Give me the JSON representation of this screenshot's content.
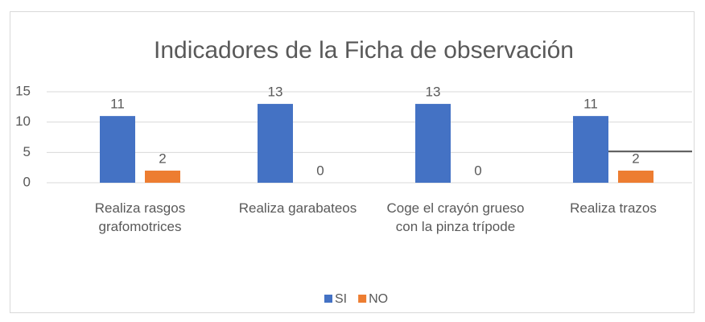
{
  "chart_data": {
    "type": "bar",
    "title": "Indicadores de la Ficha de observación",
    "categories": [
      "Realiza rasgos grafomotrices",
      "Realiza garabateos",
      "Coge el crayón grueso con la pinza trípode",
      "Realiza trazos"
    ],
    "series": [
      {
        "name": "SI",
        "color": "#4472c4",
        "values": [
          11,
          13,
          13,
          11
        ]
      },
      {
        "name": "NO",
        "color": "#ed7d31",
        "values": [
          2,
          0,
          0,
          2
        ]
      }
    ],
    "ylim": [
      0,
      15
    ],
    "yticks": [
      0,
      5,
      10,
      15
    ],
    "grid": true,
    "legend": "bottom"
  }
}
